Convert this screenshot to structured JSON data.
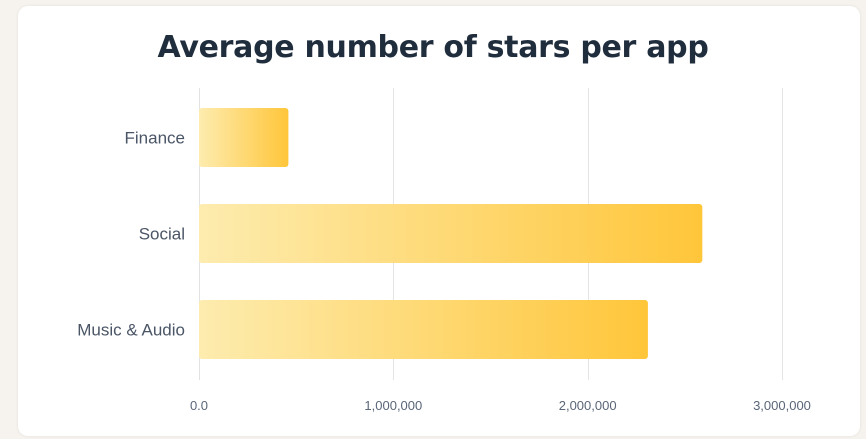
{
  "chart_data": {
    "type": "bar",
    "orientation": "horizontal",
    "title": "Average number of stars per app",
    "xlabel": "",
    "ylabel": "",
    "categories": [
      "Finance",
      "Social",
      "Music & Audio"
    ],
    "values": [
      460000,
      2590000,
      2310000
    ],
    "xlim": [
      0,
      3000000
    ],
    "xticks": [
      0,
      1000000,
      2000000,
      3000000
    ],
    "xtick_labels": [
      "0.0",
      "1,000,000",
      "2,000,000",
      "3,000,000"
    ],
    "grid": "vertical",
    "colors": {
      "bar_light": "#fdecaf",
      "bar_dark": "#ffc63a",
      "title": "#1f2d3d",
      "grid": "#e4e4e4"
    }
  }
}
